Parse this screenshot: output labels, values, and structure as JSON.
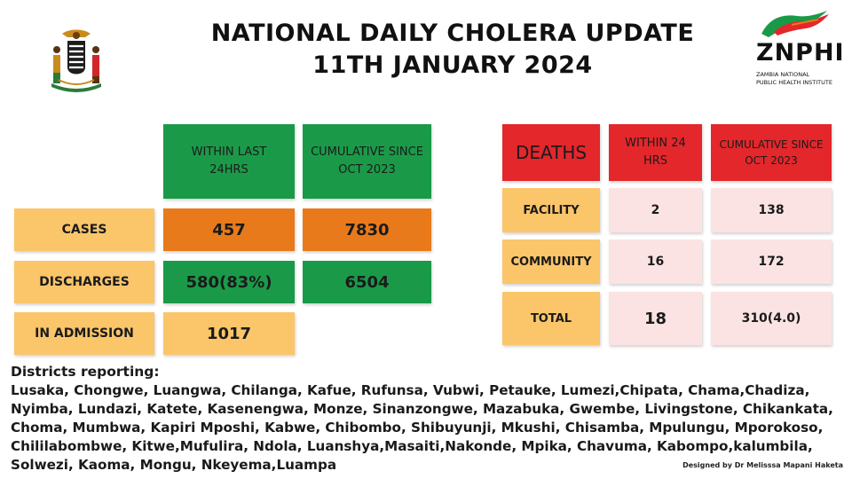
{
  "header": {
    "title_line1": "NATIONAL  DAILY CHOLERA UPDATE",
    "title_line2": "11TH JANUARY 2024"
  },
  "logo": {
    "abbr": "ZNPHI",
    "name_line1": "ZAMBIA NATIONAL",
    "name_line2": "PUBLIC HEALTH INSTITUTE"
  },
  "cases_table": {
    "col1_header": "WITHIN LAST 24HRS",
    "col2_header": "CUMULATIVE SINCE OCT 2023",
    "rows": [
      {
        "label": "CASES",
        "last24": "457",
        "cumulative": "7830"
      },
      {
        "label": "DISCHARGES",
        "last24": "580(83%)",
        "cumulative": "6504"
      },
      {
        "label": "IN ADMISSION",
        "last24": "1017"
      }
    ]
  },
  "deaths_table": {
    "title": "DEATHS",
    "col1_header": "WITHIN 24 HRS",
    "col2_header": "CUMULATIVE SINCE OCT 2023",
    "rows": [
      {
        "label": "FACILITY",
        "last24": "2",
        "cumulative": "138"
      },
      {
        "label": "COMMUNITY",
        "last24": "16",
        "cumulative": "172"
      },
      {
        "label": "TOTAL",
        "last24": "18",
        "cumulative": "310(4.0)"
      }
    ]
  },
  "districts": {
    "heading": "Districts reporting:",
    "text": " Lusaka, Chongwe, Luangwa, Chilanga, Kafue, Rufunsa, Vubwi, Petauke, Lumezi,Chipata, Chama,Chadiza, Nyimba, Lundazi, Katete, Kasenengwa, Monze, Sinanzongwe, Mazabuka, Gwembe, Livingstone, Chikankata, Choma, Mumbwa, Kapiri Mposhi, Kabwe, Chibombo, Shibuyunji, Mkushi, Chisamba, Mpulungu, Mporokoso, Chililabombwe, Kitwe,Mufulira, Ndola, Luanshya,Masaiti,Nakonde, Mpika, Chavuma, Kabompo,kalumbila, Solwezi, Kaoma, Mongu, Nkeyema,Luampa"
  },
  "credit": "Designed by Dr Melisssa Mapani Haketa",
  "colors": {
    "green": "#1a9a48",
    "orange": "#e87a1c",
    "peach": "#fbc56a",
    "red": "#e3272b",
    "pink": "#fbe3e3"
  }
}
